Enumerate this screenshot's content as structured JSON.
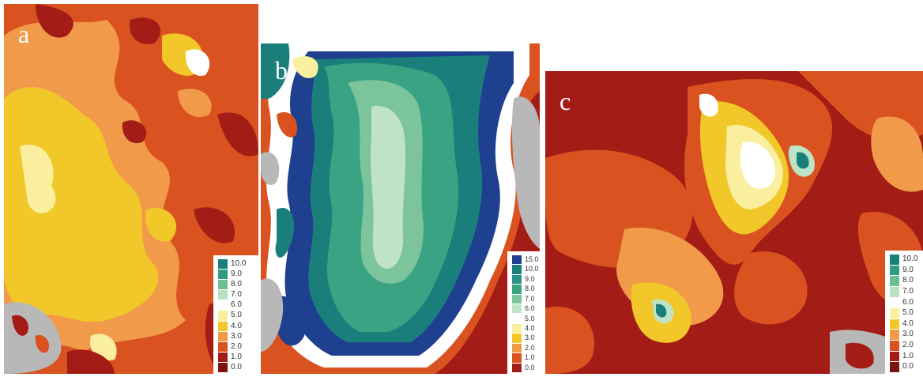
{
  "panels": [
    {
      "id": "a",
      "label": "a",
      "legend": [
        {
          "value": "10.0",
          "color": "#1a7f7a"
        },
        {
          "value": "9.0",
          "color": "#2f9b80"
        },
        {
          "value": "8.0",
          "color": "#6cbf92"
        },
        {
          "value": "7.0",
          "color": "#b9e0c2"
        },
        {
          "value": "6.0",
          "color": "#ffffff"
        },
        {
          "value": "5.0",
          "color": "#f9ef9e"
        },
        {
          "value": "4.0",
          "color": "#f2c72a"
        },
        {
          "value": "3.0",
          "color": "#f09a4a"
        },
        {
          "value": "2.0",
          "color": "#d9521f"
        },
        {
          "value": "1.0",
          "color": "#a31c16"
        },
        {
          "value": "0.0",
          "color": "#7a1410"
        }
      ]
    },
    {
      "id": "b",
      "label": "b",
      "legend": [
        {
          "value": "15.0",
          "color": "#1f3f8f"
        },
        {
          "value": "10.0",
          "color": "#1a7f7a"
        },
        {
          "value": "9.0",
          "color": "#2a9187"
        },
        {
          "value": "8.0",
          "color": "#3aa383"
        },
        {
          "value": "7.0",
          "color": "#7cc49c"
        },
        {
          "value": "6.0",
          "color": "#bfe3c7"
        },
        {
          "value": "5.0",
          "color": "#ffffff"
        },
        {
          "value": "4.0",
          "color": "#f9ef9e"
        },
        {
          "value": "3.0",
          "color": "#f2c72a"
        },
        {
          "value": "2.0",
          "color": "#f09a4a"
        },
        {
          "value": "1.0",
          "color": "#d9521f"
        },
        {
          "value": "0.0",
          "color": "#a31c16"
        }
      ]
    },
    {
      "id": "c",
      "label": "c",
      "legend": [
        {
          "value": "10.0",
          "color": "#1a7f7a"
        },
        {
          "value": "9.0",
          "color": "#2f9b80"
        },
        {
          "value": "8.0",
          "color": "#6cbf92"
        },
        {
          "value": "7.0",
          "color": "#b9e0c2"
        },
        {
          "value": "6.0",
          "color": "#ffffff"
        },
        {
          "value": "5.0",
          "color": "#f9ef9e"
        },
        {
          "value": "4.0",
          "color": "#f2c72a"
        },
        {
          "value": "3.0",
          "color": "#f09a4a"
        },
        {
          "value": "2.0",
          "color": "#d9521f"
        },
        {
          "value": "1.0",
          "color": "#a31c16"
        },
        {
          "value": "0.0",
          "color": "#7a1410"
        }
      ]
    }
  ],
  "palette": {
    "nodata_gray": "#b8b8b8",
    "dark_red": "#a31c16",
    "red_orange": "#d9521f",
    "orange": "#f09a4a",
    "yellow": "#f2c72a",
    "light_yellow": "#f9ef9e",
    "white": "#ffffff",
    "light_green": "#bfe3c7",
    "mid_green": "#7cc49c",
    "green": "#3aa383",
    "teal": "#1a7f7a",
    "navy": "#1f3f8f"
  }
}
